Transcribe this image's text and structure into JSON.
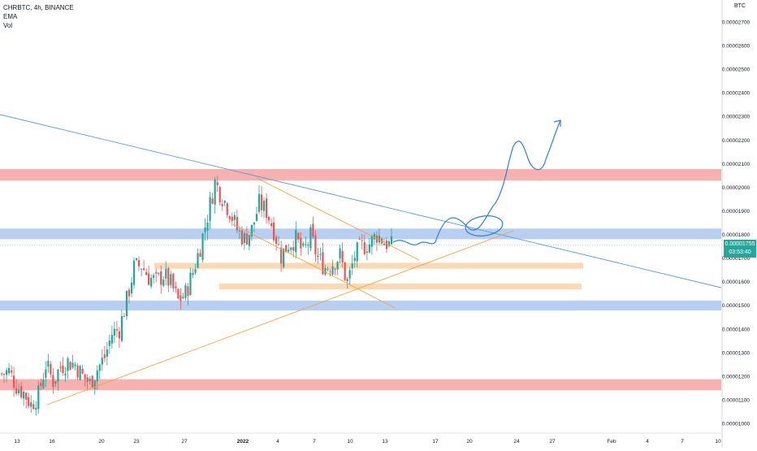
{
  "header": {
    "symbol_line": "CHRBTC, 4h, BINANCE",
    "indicator_1": "EMA",
    "indicator_2": "Vol",
    "currency": "BTC"
  },
  "price_badge": {
    "price": "0.00001755",
    "countdown": "03:53:40",
    "color": "#26a69a"
  },
  "colors": {
    "up": "#26a69a",
    "down": "#ef5350",
    "resistance_zone": "#f7a3a3",
    "support_zone": "#a9c7f0",
    "minor_zone": "#fbd2a8",
    "trendline_blue": "#5b9bd5",
    "trendline_orange": "#f5a340",
    "drawing": "#2f7ed8"
  },
  "chart_data": {
    "type": "candlestick",
    "y_ticks": [
      "0.00002700",
      "0.00002600",
      "0.00002500",
      "0.00002400",
      "0.00002300",
      "0.00002200",
      "0.00002100",
      "0.00002000",
      "0.00001900",
      "0.00001800",
      "0.00001700",
      "0.00001600",
      "0.00001500",
      "0.00001400",
      "0.00001300",
      "0.00001200",
      "0.00001100",
      "0.00001000"
    ],
    "ylim": [
      9.6e-06,
      2.8e-05
    ],
    "x_ticks": [
      "13",
      "16",
      "20",
      "23",
      "27",
      "2022",
      "4",
      "7",
      "10",
      "13",
      "17",
      "20",
      "24",
      "27",
      "Feb",
      "4",
      "7",
      "10"
    ],
    "last_price": 1.755e-05,
    "price_path": [
      [
        0,
        1.21e-05
      ],
      [
        3,
        1.22e-05
      ],
      [
        6,
        1.16e-05
      ],
      [
        9,
        1.13e-05
      ],
      [
        12,
        1.08e-05
      ],
      [
        15,
        1.12e-05
      ],
      [
        18,
        1.25e-05
      ],
      [
        21,
        1.18e-05
      ],
      [
        24,
        1.24e-05
      ],
      [
        27,
        1.26e-05
      ],
      [
        30,
        1.25e-05
      ],
      [
        33,
        1.2e-05
      ],
      [
        36,
        1.17e-05
      ],
      [
        39,
        1.23e-05
      ],
      [
        42,
        1.28e-05
      ],
      [
        45,
        1.38e-05
      ],
      [
        48,
        1.4e-05
      ],
      [
        51,
        1.52e-05
      ],
      [
        54,
        1.66e-05
      ],
      [
        57,
        1.67e-05
      ],
      [
        60,
        1.62e-05
      ],
      [
        63,
        1.6e-05
      ],
      [
        66,
        1.63e-05
      ],
      [
        69,
        1.59e-05
      ],
      [
        72,
        1.52e-05
      ],
      [
        75,
        1.55e-05
      ],
      [
        78,
        1.64e-05
      ],
      [
        81,
        1.75e-05
      ],
      [
        84,
        1.88e-05
      ],
      [
        87,
        2.02e-05
      ],
      [
        90,
        1.96e-05
      ],
      [
        93,
        1.9e-05
      ],
      [
        96,
        1.82e-05
      ],
      [
        99,
        1.78e-05
      ],
      [
        102,
        1.82e-05
      ],
      [
        105,
        1.93e-05
      ],
      [
        108,
        1.9e-05
      ],
      [
        111,
        1.82e-05
      ],
      [
        114,
        1.71e-05
      ],
      [
        117,
        1.76e-05
      ],
      [
        120,
        1.78e-05
      ],
      [
        123,
        1.72e-05
      ],
      [
        126,
        1.79e-05
      ],
      [
        129,
        1.7e-05
      ],
      [
        132,
        1.66e-05
      ],
      [
        135,
        1.68e-05
      ],
      [
        138,
        1.71e-05
      ],
      [
        141,
        1.59e-05
      ],
      [
        144,
        1.71e-05
      ],
      [
        147,
        1.75e-05
      ],
      [
        150,
        1.76e-05
      ],
      [
        153,
        1.8e-05
      ],
      [
        156,
        1.77e-05
      ],
      [
        159,
        1.75e-05
      ]
    ],
    "zones": [
      {
        "kind": "resistance",
        "from": 2.077e-05,
        "to": 2.028e-05
      },
      {
        "kind": "support",
        "from": 1.825e-05,
        "to": 1.78e-05
      },
      {
        "kind": "minor",
        "from": 1.68e-05,
        "to": 1.655e-05
      },
      {
        "kind": "minor",
        "from": 1.592e-05,
        "to": 1.567e-05
      },
      {
        "kind": "support",
        "from": 1.52e-05,
        "to": 1.478e-05
      },
      {
        "kind": "resistance",
        "from": 1.187e-05,
        "to": 1.14e-05
      }
    ]
  }
}
